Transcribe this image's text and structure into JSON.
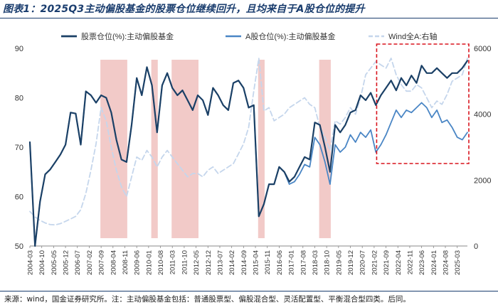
{
  "header": {
    "title": "图表1：2025Q3主动偏股基金的股票仓位继续回升，且均来自于A股仓位的提升"
  },
  "footer": {
    "source": "来源：wind，国金证券研究所。注：主动偏股基金包括：普通股票型、偏股混合型、灵活配置型、平衡混合型四类。后同。"
  },
  "colors": {
    "stock_position": "#1b4066",
    "a_share_position": "#4a86c5",
    "wind_a": "#c5d6ec",
    "shade": "#f1c4c2",
    "highlight_box": "#d9141d"
  },
  "chart_data": {
    "type": "line",
    "categories": [
      "2004-03",
      "2004-06",
      "2004-09",
      "2004-12",
      "2005-03",
      "2005-06",
      "2005-09",
      "2005-12",
      "2006-03",
      "2006-06",
      "2006-09",
      "2006-12",
      "2007-03",
      "2007-06",
      "2007-09",
      "2007-12",
      "2008-03",
      "2008-06",
      "2008-09",
      "2008-12",
      "2009-03",
      "2009-06",
      "2009-09",
      "2009-12",
      "2010-03",
      "2010-06",
      "2010-09",
      "2010-12",
      "2011-03",
      "2011-06",
      "2011-09",
      "2011-12",
      "2012-03",
      "2012-06",
      "2012-09",
      "2012-12",
      "2013-03",
      "2013-06",
      "2013-09",
      "2013-12",
      "2014-03",
      "2014-06",
      "2014-09",
      "2014-12",
      "2015-03",
      "2015-06",
      "2015-09",
      "2015-12",
      "2016-03",
      "2016-06",
      "2016-09",
      "2016-12",
      "2017-03",
      "2017-06",
      "2017-09",
      "2017-12",
      "2018-03",
      "2018-06",
      "2018-09",
      "2018-12",
      "2019-03",
      "2019-06",
      "2019-09",
      "2019-12",
      "2020-03",
      "2020-06",
      "2020-09",
      "2020-12",
      "2021-03",
      "2021-06",
      "2021-09",
      "2021-12",
      "2022-03",
      "2022-06",
      "2022-09",
      "2022-12",
      "2023-03",
      "2023-06",
      "2023-09",
      "2023-12",
      "2024-03",
      "2024-06",
      "2024-09",
      "2024-12",
      "2025-03",
      "2025-06",
      "2025-09"
    ],
    "x_tick_labels": [
      "2004-03",
      "2004-10",
      "2005-05",
      "2005-12",
      "2006-07",
      "2007-02",
      "2007-09",
      "2008-04",
      "2008-11",
      "2009-06",
      "2010-01",
      "2010-08",
      "2011-03",
      "2011-10",
      "2012-05",
      "2012-12",
      "2013-07",
      "2014-02",
      "2014-09",
      "2015-04",
      "2015-11",
      "2016-06",
      "2017-01",
      "2017-08",
      "2018-03",
      "2018-10",
      "2019-05",
      "2019-12",
      "2020-07",
      "2021-02",
      "2021-09",
      "2022-04",
      "2022-11",
      "2023-06",
      "2024-01",
      "2024-08",
      "2025-03"
    ],
    "series": [
      {
        "name": "股票仓位(%):主动偏股基金",
        "axis": "left",
        "values": [
          71.0,
          50.0,
          59.0,
          64.5,
          65.5,
          67.0,
          68.5,
          70.5,
          77.0,
          76.8,
          70.5,
          81.3,
          80.5,
          79.0,
          80.5,
          80.0,
          77.0,
          71.5,
          67.5,
          67.0,
          74.5,
          84.0,
          80.5,
          86.2,
          82.5,
          73.0,
          82.5,
          85.0,
          82.0,
          80.5,
          81.5,
          79.5,
          77.5,
          80.5,
          79.5,
          76.5,
          82.0,
          80.5,
          78.5,
          77.5,
          83.0,
          83.5,
          82.0,
          78.0,
          78.5,
          56.0,
          58.5,
          62.5,
          62.5,
          66.0,
          65.0,
          63.0,
          64.0,
          66.0,
          68.0,
          67.5,
          75.0,
          74.5,
          70.0,
          65.0,
          74.5,
          73.0,
          74.5,
          77.0,
          77.5,
          80.5,
          79.5,
          81.0,
          78.5,
          80.5,
          82.0,
          83.5,
          81.5,
          84.0,
          82.5,
          84.5,
          83.0,
          86.5,
          85.0,
          85.0,
          86.0,
          85.0,
          84.0,
          85.0,
          85.0,
          86.0,
          87.5
        ]
      },
      {
        "name": "A股仓位(%):主动偏股基金",
        "axis": "left",
        "values": [
          71.0,
          50.0,
          59.0,
          64.5,
          65.5,
          67.0,
          68.5,
          70.5,
          77.0,
          76.8,
          70.5,
          81.3,
          80.5,
          79.0,
          80.5,
          80.0,
          77.0,
          71.5,
          67.5,
          67.0,
          74.5,
          84.0,
          80.5,
          86.2,
          82.5,
          73.0,
          82.5,
          85.0,
          82.0,
          80.5,
          81.5,
          79.5,
          77.5,
          80.5,
          79.5,
          76.5,
          82.0,
          80.5,
          78.5,
          77.5,
          83.0,
          83.5,
          82.0,
          78.0,
          78.5,
          56.0,
          58.5,
          62.5,
          62.5,
          66.0,
          65.0,
          62.5,
          63.0,
          64.5,
          66.5,
          66.0,
          72.0,
          70.5,
          67.0,
          62.5,
          70.5,
          69.0,
          70.0,
          72.5,
          71.0,
          73.0,
          72.0,
          73.5,
          69.0,
          70.5,
          72.5,
          75.0,
          77.5,
          76.0,
          77.5,
          77.0,
          78.0,
          79.0,
          78.0,
          76.0,
          77.5,
          75.0,
          75.5,
          74.0,
          72.0,
          71.5,
          73.0
        ]
      },
      {
        "name": "Wind全A:右轴",
        "axis": "right",
        "values": [
          1050,
          880,
          780,
          700,
          650,
          640,
          680,
          750,
          820,
          900,
          1100,
          1600,
          2300,
          3100,
          4200,
          3800,
          3000,
          2300,
          1800,
          1500,
          2100,
          2700,
          2600,
          2900,
          2700,
          2400,
          2700,
          2900,
          2700,
          2500,
          2300,
          2100,
          2200,
          2200,
          2100,
          2300,
          2400,
          2200,
          2300,
          2400,
          2500,
          2800,
          3100,
          3600,
          4700,
          5700,
          4100,
          4200,
          3800,
          3900,
          4000,
          4200,
          4300,
          4400,
          4500,
          4300,
          4200,
          3600,
          3300,
          2900,
          3800,
          3700,
          3900,
          4200,
          4000,
          4500,
          5200,
          5400,
          5600,
          5500,
          5400,
          5700,
          5200,
          4900,
          4700,
          4700,
          4900,
          4800,
          4500,
          4200,
          4400,
          4300,
          4600,
          5000,
          5100,
          5200,
          5700
        ]
      }
    ],
    "legend": [
      "股票仓位(%):主动偏股基金",
      "A股仓位(%):主动偏股基金",
      "Wind全A:右轴"
    ],
    "legend_position": "top-center",
    "y_left": {
      "min": 50,
      "max": 90,
      "ticks": [
        50,
        60,
        70,
        80,
        90
      ]
    },
    "y_right": {
      "min": 0,
      "max": 6000,
      "ticks": [
        0,
        2000,
        4000,
        6000
      ]
    },
    "shaded_ranges": [
      [
        "2007-09",
        "2008-12"
      ],
      [
        "2010-03",
        "2010-06"
      ],
      [
        "2011-03",
        "2012-06"
      ],
      [
        "2015-06",
        "2015-09"
      ],
      [
        "2018-06",
        "2018-12"
      ]
    ],
    "highlight_range": [
      "2021-06",
      "2025-09"
    ],
    "grid": false
  }
}
